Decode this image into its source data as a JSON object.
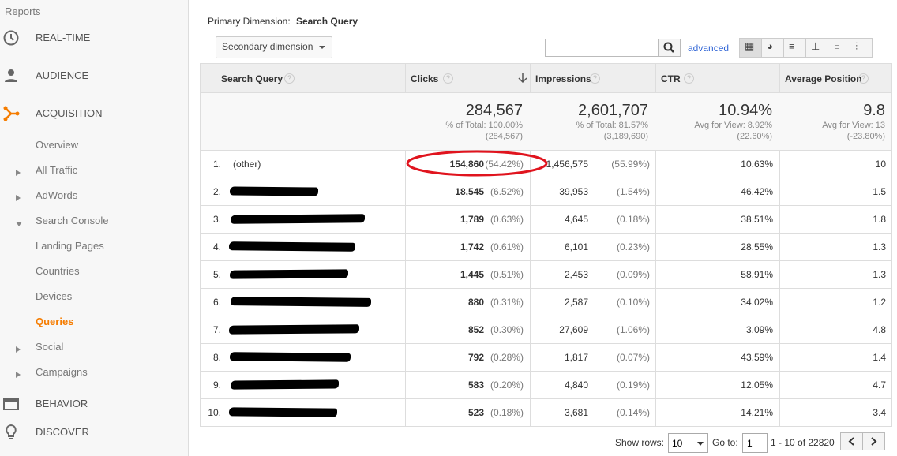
{
  "sidebar": {
    "title": "Reports",
    "items": [
      {
        "label": "REAL-TIME",
        "level": "top",
        "icon": "clock"
      },
      {
        "label": "AUDIENCE",
        "level": "top",
        "icon": "person"
      },
      {
        "label": "ACQUISITION",
        "level": "top",
        "icon": "acquisition",
        "active": true
      },
      {
        "label": "Overview",
        "level": "sub"
      },
      {
        "label": "All Traffic",
        "level": "sub",
        "arrow": "right"
      },
      {
        "label": "AdWords",
        "level": "sub",
        "arrow": "right"
      },
      {
        "label": "Search Console",
        "level": "sub",
        "arrow": "down"
      },
      {
        "label": "Landing Pages",
        "level": "subsub"
      },
      {
        "label": "Countries",
        "level": "subsub"
      },
      {
        "label": "Devices",
        "level": "subsub"
      },
      {
        "label": "Queries",
        "level": "subsub",
        "active": true
      },
      {
        "label": "Social",
        "level": "sub",
        "arrow": "right"
      },
      {
        "label": "Campaigns",
        "level": "sub",
        "arrow": "right"
      },
      {
        "label": "BEHAVIOR",
        "level": "top",
        "icon": "behavior"
      },
      {
        "label": "DISCOVER",
        "level": "top",
        "icon": "discover"
      }
    ]
  },
  "toolbar": {
    "primary_label": "Primary Dimension:",
    "primary_value": "Search Query",
    "secondary": "Secondary dimension",
    "advanced": "advanced"
  },
  "table": {
    "headers": [
      "Search Query",
      "Clicks",
      "Impressions",
      "CTR",
      "Average Position"
    ],
    "totals": [
      [
        "284,567",
        "% of Total: 100.00%",
        "(284,567)"
      ],
      [
        "2,601,707",
        "% of Total: 81.57%",
        "(3,189,690)"
      ],
      [
        "10.94%",
        "Avg for View: 8.92%",
        "(22.60%)"
      ],
      [
        "9.8",
        "Avg for View: 13",
        "(-23.80%)"
      ]
    ],
    "rows": [
      {
        "index": "1.",
        "query": "(other)",
        "clicks": "154,860",
        "clicks_pct": "(54.42%)",
        "impressions": "1,456,575",
        "impressions_pct": "(55.99%)",
        "ctr": "10.63%",
        "position": "10",
        "highlighted": true
      },
      {
        "index": "2.",
        "clicks": "18,545",
        "clicks_pct": "(6.52%)",
        "impressions": "39,953",
        "impressions_pct": "(1.54%)",
        "ctr": "46.42%",
        "position": "1.5"
      },
      {
        "index": "3.",
        "clicks": "1,789",
        "clicks_pct": "(0.63%)",
        "impressions": "4,645",
        "impressions_pct": "(0.18%)",
        "ctr": "38.51%",
        "position": "1.8"
      },
      {
        "index": "4.",
        "clicks": "1,742",
        "clicks_pct": "(0.61%)",
        "impressions": "6,101",
        "impressions_pct": "(0.23%)",
        "ctr": "28.55%",
        "position": "1.3"
      },
      {
        "index": "5.",
        "clicks": "1,445",
        "clicks_pct": "(0.51%)",
        "impressions": "2,453",
        "impressions_pct": "(0.09%)",
        "ctr": "58.91%",
        "position": "1.3"
      },
      {
        "index": "6.",
        "clicks": "880",
        "clicks_pct": "(0.31%)",
        "impressions": "2,587",
        "impressions_pct": "(0.10%)",
        "ctr": "34.02%",
        "position": "1.2"
      },
      {
        "index": "7.",
        "clicks": "852",
        "clicks_pct": "(0.30%)",
        "impressions": "27,609",
        "impressions_pct": "(1.06%)",
        "ctr": "3.09%",
        "position": "4.8"
      },
      {
        "index": "8.",
        "clicks": "792",
        "clicks_pct": "(0.28%)",
        "impressions": "1,817",
        "impressions_pct": "(0.07%)",
        "ctr": "43.59%",
        "position": "1.4"
      },
      {
        "index": "9.",
        "clicks": "583",
        "clicks_pct": "(0.20%)",
        "impressions": "4,840",
        "impressions_pct": "(0.19%)",
        "ctr": "12.05%",
        "position": "4.7"
      },
      {
        "index": "10.",
        "clicks": "523",
        "clicks_pct": "(0.18%)",
        "impressions": "3,681",
        "impressions_pct": "(0.14%)",
        "ctr": "14.21%",
        "position": "3.4"
      }
    ]
  },
  "footer": {
    "show_rows_label": "Show rows:",
    "show_rows_value": "10",
    "goto_label": "Go to:",
    "goto_value": "1",
    "range": "1 - 10 of 22820"
  }
}
